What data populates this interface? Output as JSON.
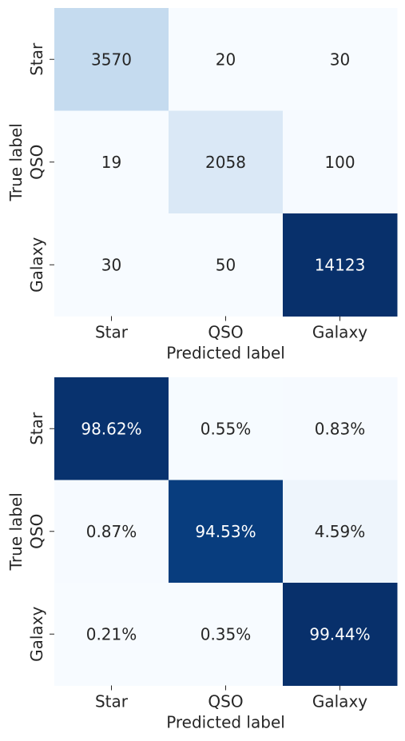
{
  "chart_data": [
    {
      "type": "heatmap",
      "title": "",
      "xlabel": "Predicted label",
      "ylabel": "True label",
      "x_categories": [
        "Star",
        "QSO",
        "Galaxy"
      ],
      "y_categories": [
        "Star",
        "QSO",
        "Galaxy"
      ],
      "values": [
        [
          3570,
          20,
          30
        ],
        [
          19,
          2058,
          100
        ],
        [
          30,
          50,
          14123
        ]
      ],
      "labels": [
        [
          "3570",
          "20",
          "30"
        ],
        [
          "19",
          "2058",
          "100"
        ],
        [
          "30",
          "50",
          "14123"
        ]
      ],
      "colormap": "Blues",
      "colorbar": false,
      "grid": false
    },
    {
      "type": "heatmap",
      "title": "",
      "xlabel": "Predicted label",
      "ylabel": "True label",
      "x_categories": [
        "Star",
        "QSO",
        "Galaxy"
      ],
      "y_categories": [
        "Star",
        "QSO",
        "Galaxy"
      ],
      "values": [
        [
          98.62,
          0.55,
          0.83
        ],
        [
          0.87,
          94.53,
          4.59
        ],
        [
          0.21,
          0.35,
          99.44
        ]
      ],
      "labels": [
        [
          "98.62%",
          "0.55%",
          "0.83%"
        ],
        [
          "0.87%",
          "94.53%",
          "4.59%"
        ],
        [
          "0.21%",
          "0.35%",
          "99.44%"
        ]
      ],
      "colormap": "Blues",
      "colorbar": false,
      "grid": false
    }
  ]
}
